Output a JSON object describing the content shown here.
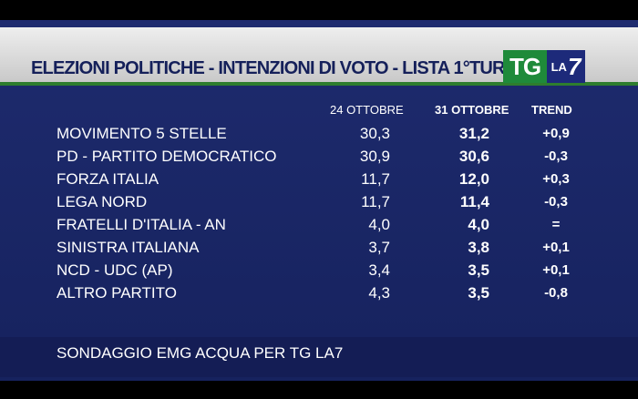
{
  "header": {
    "title": "ELEZIONI POLITICHE - INTENZIONI DI VOTO - LISTA 1°TURNO",
    "logo_tg": "TG",
    "logo_la": "LA",
    "logo_seven": "7"
  },
  "columns": {
    "date1": "24 OTTOBRE",
    "date2": "31 OTTOBRE",
    "trend": "TREND"
  },
  "rows": [
    {
      "party": "MOVIMENTO 5 STELLE",
      "v1": "30,3",
      "v2": "31,2",
      "trend": "+0,9"
    },
    {
      "party": "PD - PARTITO DEMOCRATICO",
      "v1": "30,9",
      "v2": "30,6",
      "trend": "-0,3"
    },
    {
      "party": "FORZA ITALIA",
      "v1": "11,7",
      "v2": "12,0",
      "trend": "+0,3"
    },
    {
      "party": "LEGA NORD",
      "v1": "11,7",
      "v2": "11,4",
      "trend": "-0,3"
    },
    {
      "party": "FRATELLI D'ITALIA - AN",
      "v1": "4,0",
      "v2": "4,0",
      "trend": "="
    },
    {
      "party": "SINISTRA ITALIANA",
      "v1": "3,7",
      "v2": "3,8",
      "trend": "+0,1"
    },
    {
      "party": "NCD - UDC (AP)",
      "v1": "3,4",
      "v2": "3,5",
      "trend": "+0,1"
    },
    {
      "party": "ALTRO PARTITO",
      "v1": "4,3",
      "v2": "3,5",
      "trend": "-0,8"
    }
  ],
  "footer": {
    "source": "SONDAGGIO EMG ACQUA PER TG LA7"
  },
  "colors": {
    "background": "#1e2b6e",
    "title_band": "#e0e0e0",
    "accent_green": "#2e7d2e",
    "logo_green": "#1f8a3a"
  }
}
